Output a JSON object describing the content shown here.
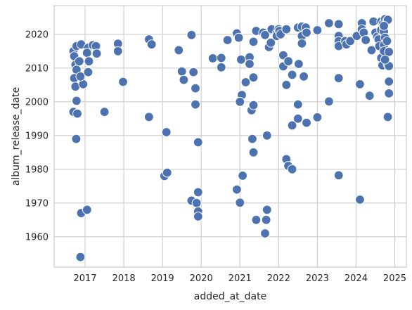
{
  "chart_data": {
    "type": "scatter",
    "title": "",
    "xlabel": "added_at_date",
    "ylabel": "album_release_date",
    "xlim": [
      2016.2,
      2025.3
    ],
    "ylim": [
      1951.0,
      2028.5
    ],
    "grid": true,
    "xticks": [
      2017,
      2018,
      2019,
      2020,
      2021,
      2022,
      2023,
      2024,
      2025
    ],
    "yticks": [
      1960,
      1970,
      1980,
      1990,
      2000,
      2010,
      2020
    ],
    "point_color": "#4c72b0",
    "point_edge_color": "#ffffff",
    "grid_color": "#cccccc",
    "spine_color": "#cccccc",
    "points": [
      [
        2016.7,
        2015.0
      ],
      [
        2016.78,
        2016.5
      ],
      [
        2016.72,
        2013.5
      ],
      [
        2016.75,
        2011.0
      ],
      [
        2016.78,
        2009.5
      ],
      [
        2016.72,
        2007.0
      ],
      [
        2016.75,
        2004.5
      ],
      [
        2016.7,
        1997.0
      ],
      [
        2016.8,
        1996.5
      ],
      [
        2016.78,
        2000.3
      ],
      [
        2016.77,
        1989.0
      ],
      [
        2016.9,
        1967.0
      ],
      [
        2016.88,
        1954.0
      ],
      [
        2016.9,
        2017.0
      ],
      [
        2016.85,
        2012.0
      ],
      [
        2016.95,
        2005.2
      ],
      [
        2016.88,
        2007.5
      ],
      [
        2017.08,
        2016.0
      ],
      [
        2017.05,
        2014.5
      ],
      [
        2017.1,
        2012.0
      ],
      [
        2017.08,
        2008.8
      ],
      [
        2017.05,
        1968.0
      ],
      [
        2017.2,
        2016.8
      ],
      [
        2017.28,
        2016.5
      ],
      [
        2017.3,
        2014.3
      ],
      [
        2017.5,
        1997.0
      ],
      [
        2017.85,
        2017.2
      ],
      [
        2017.85,
        2015.0
      ],
      [
        2017.98,
        2005.9
      ],
      [
        2018.65,
        2018.5
      ],
      [
        2018.72,
        2017.0
      ],
      [
        2018.65,
        1995.5
      ],
      [
        2019.1,
        1991.0
      ],
      [
        2019.05,
        1978.0
      ],
      [
        2019.12,
        1979.0
      ],
      [
        2019.42,
        2015.3
      ],
      [
        2019.5,
        2009.0
      ],
      [
        2019.55,
        2006.5
      ],
      [
        2019.75,
        2019.8
      ],
      [
        2019.8,
        2008.8
      ],
      [
        2019.85,
        2004.0
      ],
      [
        2019.85,
        1999.2
      ],
      [
        2019.75,
        1970.7
      ],
      [
        2019.88,
        1970.0
      ],
      [
        2019.92,
        1988.0
      ],
      [
        2019.92,
        1973.2
      ],
      [
        2019.92,
        1967.5
      ],
      [
        2019.92,
        1966.0
      ],
      [
        2020.3,
        2012.9
      ],
      [
        2020.52,
        2013.0
      ],
      [
        2020.52,
        2010.2
      ],
      [
        2020.68,
        2018.3
      ],
      [
        2020.92,
        2020.3
      ],
      [
        2020.97,
        2019.0
      ],
      [
        2020.92,
        1974.0
      ],
      [
        2021.03,
        2012.5
      ],
      [
        2021.05,
        2002.0
      ],
      [
        2021.0,
        2000.0
      ],
      [
        2021.0,
        1970.1
      ],
      [
        2021.07,
        1978.1
      ],
      [
        2021.15,
        2005.8
      ],
      [
        2021.25,
        2013.2
      ],
      [
        2021.25,
        2011.2
      ],
      [
        2021.3,
        1997.5
      ],
      [
        2021.35,
        1999.0
      ],
      [
        2021.32,
        1989.0
      ],
      [
        2021.35,
        1985.0
      ],
      [
        2021.35,
        2007.2
      ],
      [
        2021.35,
        2017.8
      ],
      [
        2021.42,
        2021.0
      ],
      [
        2021.42,
        1965.0
      ],
      [
        2021.6,
        2020.5
      ],
      [
        2021.65,
        2019.8
      ],
      [
        2021.68,
        1965.0
      ],
      [
        2021.65,
        1961.0
      ],
      [
        2021.7,
        1990.0
      ],
      [
        2021.7,
        1968.0
      ],
      [
        2021.75,
        2016.2
      ],
      [
        2021.8,
        2017.5
      ],
      [
        2021.82,
        2021.5
      ],
      [
        2021.95,
        2020.2
      ],
      [
        2021.95,
        2019.5
      ],
      [
        2022.0,
        2021.5
      ],
      [
        2022.02,
        2021.0
      ],
      [
        2022.05,
        2020.0
      ],
      [
        2022.12,
        2013.8
      ],
      [
        2022.12,
        2010.5
      ],
      [
        2022.2,
        2005.0
      ],
      [
        2022.2,
        1983.0
      ],
      [
        2022.25,
        1981.0
      ],
      [
        2022.25,
        2012.0
      ],
      [
        2022.35,
        2008.0
      ],
      [
        2022.35,
        1993.0
      ],
      [
        2022.35,
        1980.0
      ],
      [
        2022.2,
        2021.5
      ],
      [
        2022.5,
        2022.0
      ],
      [
        2022.52,
        2011.2
      ],
      [
        2022.5,
        1999.2
      ],
      [
        2022.5,
        1995.0
      ],
      [
        2022.6,
        2022.3
      ],
      [
        2022.6,
        2019.5
      ],
      [
        2022.6,
        2017.3
      ],
      [
        2022.65,
        2007.5
      ],
      [
        2022.7,
        2022.0
      ],
      [
        2022.72,
        2020.5
      ],
      [
        2022.72,
        1993.8
      ],
      [
        2023.0,
        2021.2
      ],
      [
        2023.0,
        1995.4
      ],
      [
        2023.3,
        2023.3
      ],
      [
        2023.3,
        2000.1
      ],
      [
        2023.55,
        2023.0
      ],
      [
        2023.55,
        2019.5
      ],
      [
        2023.55,
        2018.0
      ],
      [
        2023.55,
        2016.5
      ],
      [
        2023.55,
        2007.0
      ],
      [
        2023.55,
        1978.2
      ],
      [
        2023.72,
        2018.0
      ],
      [
        2023.75,
        2017.0
      ],
      [
        2023.85,
        2018.0
      ],
      [
        2024.02,
        2019.5
      ],
      [
        2024.1,
        2005.2
      ],
      [
        2024.1,
        1971.0
      ],
      [
        2024.15,
        2023.3
      ],
      [
        2024.15,
        2021.5
      ],
      [
        2024.2,
        2020.5
      ],
      [
        2024.25,
        2018.3
      ],
      [
        2024.35,
        2001.8
      ],
      [
        2024.4,
        2015.3
      ],
      [
        2024.45,
        2023.8
      ],
      [
        2024.5,
        2020.5
      ],
      [
        2024.55,
        2019.3
      ],
      [
        2024.58,
        2018.5
      ],
      [
        2024.6,
        2016.5
      ],
      [
        2024.65,
        2023.8
      ],
      [
        2024.65,
        2021.3
      ],
      [
        2024.65,
        2013.0
      ],
      [
        2024.68,
        2010.8
      ],
      [
        2024.7,
        2023.3
      ],
      [
        2024.72,
        2022.0
      ],
      [
        2024.72,
        2020.8
      ],
      [
        2024.72,
        2016.8
      ],
      [
        2024.72,
        2015.0
      ],
      [
        2024.75,
        2024.5
      ],
      [
        2024.75,
        2019.0
      ],
      [
        2024.8,
        2024.0
      ],
      [
        2024.8,
        2018.0
      ],
      [
        2024.82,
        2024.3
      ],
      [
        2024.82,
        2011.0
      ],
      [
        2024.85,
        2010.6
      ],
      [
        2024.85,
        2014.8
      ],
      [
        2024.85,
        2006.0
      ],
      [
        2024.85,
        2002.5
      ],
      [
        2024.82,
        1995.5
      ],
      [
        2024.72,
        2022.5
      ],
      [
        2024.75,
        2012.5
      ]
    ]
  }
}
